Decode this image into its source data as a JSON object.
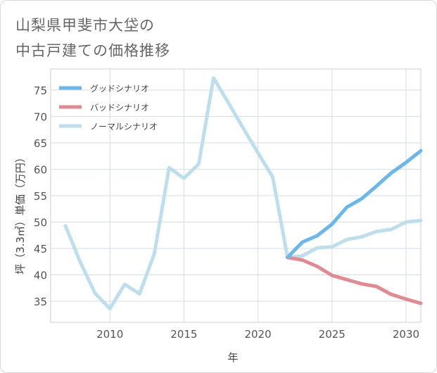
{
  "title": {
    "line1": "山梨県甲斐市大垈の",
    "line2": "中古戸建ての価格推移"
  },
  "chart_data": {
    "type": "line",
    "title": "山梨県甲斐市大垈の中古戸建ての価格推移",
    "xlabel": "年",
    "ylabel": "坪（3.3㎡）単価（万円）",
    "xlim": [
      2006,
      2031
    ],
    "ylim": [
      31,
      79
    ],
    "xticks": [
      2010,
      2015,
      2020,
      2025,
      2030
    ],
    "yticks": [
      35,
      40,
      45,
      50,
      55,
      60,
      65,
      70,
      75
    ],
    "grid": true,
    "legend_position": "top-left",
    "series": [
      {
        "name": "グッドシナリオ",
        "color": "#6cb6ea",
        "x": [
          2022,
          2023,
          2024,
          2025,
          2026,
          2027,
          2028,
          2029,
          2030,
          2031
        ],
        "values": [
          43.3,
          46.2,
          47.4,
          49.6,
          52.8,
          54.4,
          56.8,
          59.3,
          61.3,
          63.5
        ]
      },
      {
        "name": "バッドシナリオ",
        "color": "#e08a93",
        "x": [
          2022,
          2023,
          2024,
          2025,
          2026,
          2027,
          2028,
          2029,
          2030,
          2031
        ],
        "values": [
          43.3,
          42.8,
          41.6,
          39.9,
          39.1,
          38.3,
          37.8,
          36.3,
          35.4,
          34.6
        ]
      },
      {
        "name": "ノーマルシナリオ",
        "color": "#bfdeec",
        "x": [
          2007,
          2008,
          2009,
          2010,
          2011,
          2012,
          2013,
          2014,
          2015,
          2016,
          2017,
          2018,
          2019,
          2020,
          2021,
          2022,
          2023,
          2024,
          2025,
          2026,
          2027,
          2028,
          2029,
          2030,
          2031
        ],
        "values": [
          49.3,
          42.4,
          36.5,
          33.6,
          38.2,
          36.4,
          44.0,
          60.3,
          58.3,
          61.0,
          77.3,
          72.6,
          67.8,
          63.1,
          58.5,
          43.3,
          43.6,
          45.1,
          45.3,
          46.7,
          47.2,
          48.2,
          48.6,
          50.0,
          50.3
        ]
      }
    ]
  }
}
